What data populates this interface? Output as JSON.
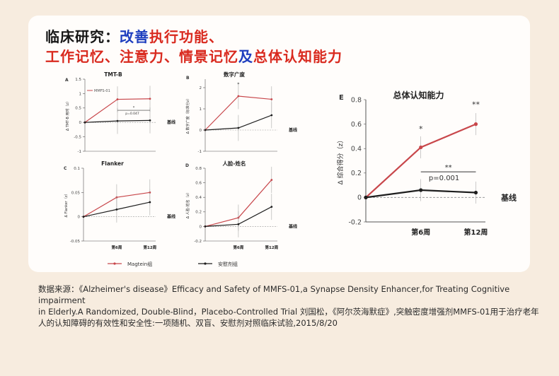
{
  "headline": {
    "line1": {
      "prefix": "临床研究：",
      "blue": "改善",
      "red": "执行功能、"
    },
    "line2": {
      "red1": "工作记忆、注意力、情景记忆",
      "blue": "及",
      "red2": "总体认知能力"
    }
  },
  "colors": {
    "treatment": "#c8474b",
    "placebo": "#1e1e1e",
    "baseline": "#9a9a9a",
    "blue": "#1f3fbf",
    "red": "#d92a1f"
  },
  "legend": {
    "treatment": "Magtein组",
    "placebo": "安慰剂组"
  },
  "baseline_label": "基线",
  "chart_data": [
    {
      "id": "A",
      "type": "line",
      "title": "TMT-B",
      "ylabel": "Δ TMT-B 用时（z）",
      "legend_label": "MMFS-01",
      "x": [
        "基线",
        "第6周",
        "第12周"
      ],
      "xtick_labels": [
        "",
        "",
        ""
      ],
      "ylim": [
        -1,
        1.5
      ],
      "yticks": [
        "-1",
        "-0.5",
        "0",
        "0.5",
        "1",
        "1.5"
      ],
      "series": [
        {
          "key": "treatment",
          "values": [
            0,
            0.8,
            0.82
          ]
        },
        {
          "key": "placebo",
          "values": [
            0,
            0.05,
            0.07
          ]
        }
      ],
      "annotations": [
        {
          "star": "*",
          "p": "p=0.047",
          "from": 1,
          "to": 2,
          "y": 0.42
        }
      ]
    },
    {
      "id": "B",
      "type": "line",
      "title": "数字广度",
      "ylabel": "Δ 数字广度（标准分z）",
      "x": [
        "基线",
        "第6周",
        "第12周"
      ],
      "xtick_labels": [
        "",
        "",
        ""
      ],
      "ylim": [
        -1,
        2.4
      ],
      "yticks": [
        "-1",
        "0",
        "1",
        "2"
      ],
      "series": [
        {
          "key": "treatment",
          "values": [
            0,
            1.6,
            1.45
          ]
        },
        {
          "key": "placebo",
          "values": [
            0,
            0.1,
            0.7
          ]
        }
      ],
      "annotations": [
        {
          "star": "*",
          "at": 1,
          "y": 2.1
        }
      ]
    },
    {
      "id": "C",
      "type": "line",
      "title": "Flanker",
      "ylabel": "Δ Flanker（z）",
      "x": [
        "基线",
        "第6周",
        "第12周"
      ],
      "xtick_labels": [
        "",
        "第6周",
        "第12周"
      ],
      "ylim": [
        -0.05,
        0.1
      ],
      "yticks": [
        "-0.05",
        "0",
        "0.05",
        "0.1"
      ],
      "series": [
        {
          "key": "treatment",
          "values": [
            0,
            0.04,
            0.05
          ]
        },
        {
          "key": "placebo",
          "values": [
            0,
            0.015,
            0.03
          ]
        }
      ],
      "annotations": []
    },
    {
      "id": "D",
      "type": "line",
      "title": "人脸-姓名",
      "ylabel": "Δ 人脸-姓名（z）",
      "x": [
        "基线",
        "第6周",
        "第12周"
      ],
      "xtick_labels": [
        "",
        "第6周",
        "第12周"
      ],
      "ylim": [
        -0.2,
        0.8
      ],
      "yticks": [
        "-0.2",
        "0",
        "0.2",
        "0.4",
        "0.6",
        "0.8"
      ],
      "series": [
        {
          "key": "treatment",
          "values": [
            0,
            0.12,
            0.64
          ]
        },
        {
          "key": "placebo",
          "values": [
            0,
            0.03,
            0.27
          ]
        }
      ],
      "annotations": []
    },
    {
      "id": "E",
      "type": "line",
      "title": "总体认知能力",
      "ylabel": "Δ 综合得分（z）",
      "x": [
        "基线",
        "第6周",
        "第12周"
      ],
      "xtick_labels": [
        "",
        "第6周",
        "第12周"
      ],
      "ylim": [
        -0.2,
        0.8
      ],
      "yticks": [
        "-0.2",
        "0",
        "0.2",
        "0.4",
        "0.6",
        "0.8"
      ],
      "series": [
        {
          "key": "treatment",
          "values": [
            0,
            0.41,
            0.6
          ]
        },
        {
          "key": "placebo",
          "values": [
            0,
            0.06,
            0.04
          ]
        }
      ],
      "annotations": [
        {
          "star": "*",
          "at": 1,
          "y": 0.54
        },
        {
          "star": "**",
          "at": 2,
          "y": 0.74
        },
        {
          "star": "**",
          "p": "p=0.001",
          "from": 1,
          "to": 2,
          "y": 0.21
        }
      ]
    }
  ],
  "source": {
    "line1": "数据来源：《Alzheimer's disease》Efficacy and Safety of MMFS-01,a Synapse Density Enhancer,for Treating Cognitive impairment",
    "line2": "in Elderly.A Randomized, Double-Blind，Placebo-Controlled Trial 刘国松，《阿尔茨海默症》,突触密度增强剂MMFS-01用于治疗老年",
    "line3": "人的认知障碍的有效性和安全性:一项随机、双盲、安慰剂对照临床试验,2015/8/20"
  }
}
